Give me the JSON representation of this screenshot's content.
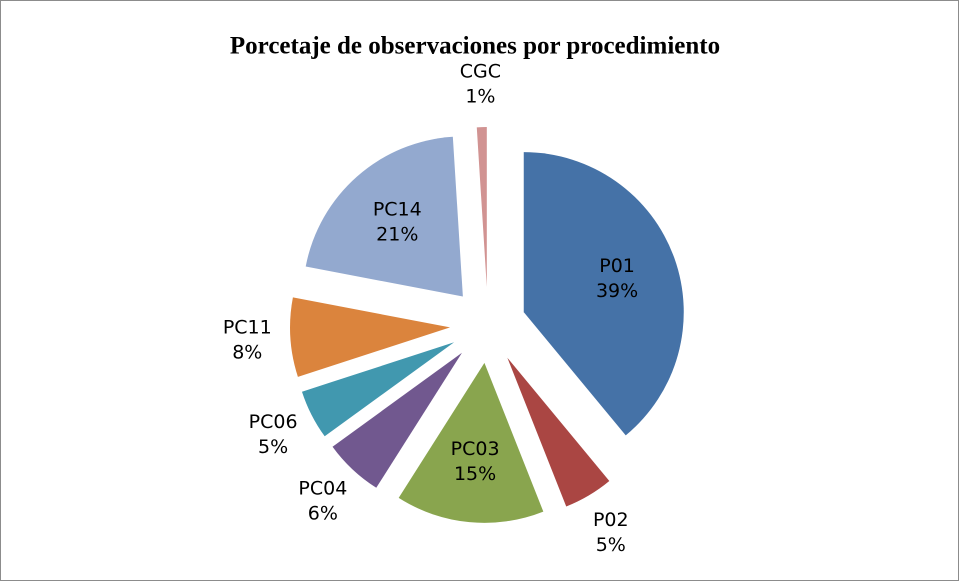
{
  "chart_data": {
    "type": "pie",
    "title": "Porcetaje de observaciones por procedimiento",
    "categories": [
      "P01",
      "P02",
      "PC03",
      "PC04",
      "PC06",
      "PC11",
      "PC14",
      "CGC"
    ],
    "values": [
      39,
      5,
      15,
      6,
      5,
      8,
      21,
      1
    ],
    "value_labels": [
      "39%",
      "5%",
      "15%",
      "6%",
      "5%",
      "8%",
      "21%",
      "1%"
    ],
    "colors": [
      "#4572a7",
      "#aa4643",
      "#89a54e",
      "#71588f",
      "#4198af",
      "#db843d",
      "#93a9cf",
      "#d19392"
    ],
    "exploded": true
  }
}
